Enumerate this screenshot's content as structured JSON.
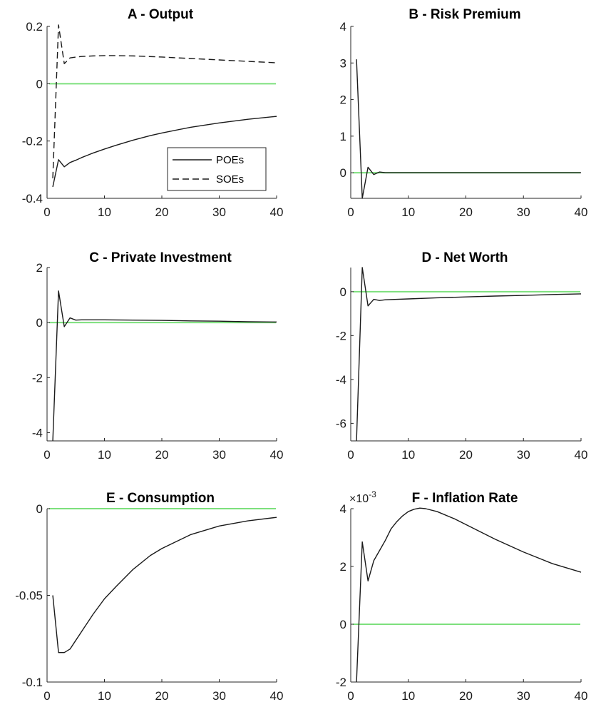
{
  "figure": {
    "background": "#ffffff",
    "zero_line_color": "#7de07d",
    "series_color": "#1a1a1a"
  },
  "chart_data": [
    {
      "type": "line",
      "title": "A - Output",
      "xlim": [
        0,
        40
      ],
      "ylim": [
        -0.4,
        0.2
      ],
      "xticks": [
        0,
        10,
        20,
        30,
        40
      ],
      "yticks": [
        -0.4,
        -0.2,
        0,
        0.2
      ],
      "ytick_labels": [
        "-0.4",
        "-0.2",
        "0",
        "0.2"
      ],
      "zero_line": true,
      "legend": {
        "position": "lower-right",
        "entries": [
          "POEs",
          "SOEs"
        ]
      },
      "series": [
        {
          "name": "POEs",
          "style": "solid",
          "x": [
            1,
            2,
            3,
            4,
            5,
            6,
            7,
            8,
            10,
            12,
            15,
            18,
            20,
            25,
            30,
            35,
            40
          ],
          "y": [
            -0.36,
            -0.265,
            -0.29,
            -0.275,
            -0.267,
            -0.258,
            -0.25,
            -0.242,
            -0.228,
            -0.215,
            -0.197,
            -0.181,
            -0.172,
            -0.152,
            -0.137,
            -0.124,
            -0.114
          ]
        },
        {
          "name": "SOEs",
          "style": "dashed",
          "x": [
            1,
            2,
            3,
            4,
            5,
            6,
            8,
            10,
            12,
            15,
            20,
            25,
            30,
            35,
            40
          ],
          "y": [
            -0.33,
            0.205,
            0.07,
            0.09,
            0.093,
            0.095,
            0.097,
            0.098,
            0.098,
            0.097,
            0.093,
            0.088,
            0.083,
            0.078,
            0.073
          ]
        }
      ]
    },
    {
      "type": "line",
      "title": "B - Risk Premium",
      "xlim": [
        0,
        40
      ],
      "ylim": [
        -0.7,
        4
      ],
      "xticks": [
        0,
        10,
        20,
        30,
        40
      ],
      "yticks": [
        0,
        1,
        2,
        3,
        4
      ],
      "ytick_labels": [
        "0",
        "1",
        "2",
        "3",
        "4"
      ],
      "zero_line": true,
      "series": [
        {
          "style": "solid",
          "x": [
            1,
            2,
            3,
            4,
            5,
            6,
            8,
            10,
            15,
            20,
            30,
            40
          ],
          "y": [
            3.1,
            -0.7,
            0.15,
            -0.05,
            0.02,
            0,
            0,
            0,
            0,
            0,
            0,
            0
          ]
        }
      ]
    },
    {
      "type": "line",
      "title": "C - Private Investment",
      "xlim": [
        0,
        40
      ],
      "ylim": [
        -4.3,
        2
      ],
      "xticks": [
        0,
        10,
        20,
        30,
        40
      ],
      "yticks": [
        -4,
        -2,
        0,
        2
      ],
      "ytick_labels": [
        "-4",
        "-2",
        "0",
        "2"
      ],
      "zero_line": true,
      "series": [
        {
          "style": "solid",
          "x": [
            1,
            2,
            3,
            4,
            5,
            6,
            8,
            10,
            15,
            20,
            25,
            30,
            35,
            40
          ],
          "y": [
            -4.3,
            1.15,
            -0.15,
            0.17,
            0.09,
            0.1,
            0.1,
            0.1,
            0.09,
            0.08,
            0.06,
            0.05,
            0.03,
            0.02
          ]
        }
      ]
    },
    {
      "type": "line",
      "title": "D - Net Worth",
      "xlim": [
        0,
        40
      ],
      "ylim": [
        -6.8,
        1.1
      ],
      "xticks": [
        0,
        10,
        20,
        30,
        40
      ],
      "yticks": [
        -6,
        -4,
        -2,
        0
      ],
      "ytick_labels": [
        "-6",
        "-4",
        "-2",
        "0"
      ],
      "zero_line": true,
      "series": [
        {
          "style": "solid",
          "x": [
            1,
            2,
            3,
            4,
            5,
            6,
            8,
            10,
            15,
            20,
            25,
            30,
            35,
            40
          ],
          "y": [
            -6.8,
            1.1,
            -0.65,
            -0.35,
            -0.4,
            -0.37,
            -0.35,
            -0.33,
            -0.28,
            -0.24,
            -0.2,
            -0.17,
            -0.13,
            -0.1
          ]
        }
      ]
    },
    {
      "type": "line",
      "title": "E - Consumption",
      "xlim": [
        0,
        40
      ],
      "ylim": [
        -0.1,
        0
      ],
      "xticks": [
        0,
        10,
        20,
        30,
        40
      ],
      "yticks": [
        -0.1,
        -0.05,
        0
      ],
      "ytick_labels": [
        "-0.1",
        "-0.05",
        "0"
      ],
      "zero_line": true,
      "series": [
        {
          "style": "solid",
          "x": [
            1,
            2,
            3,
            4,
            5,
            6,
            7,
            8,
            10,
            12,
            15,
            18,
            20,
            25,
            30,
            35,
            40
          ],
          "y": [
            -0.05,
            -0.083,
            -0.083,
            -0.081,
            -0.076,
            -0.071,
            -0.066,
            -0.061,
            -0.052,
            -0.045,
            -0.035,
            -0.027,
            -0.023,
            -0.015,
            -0.01,
            -0.007,
            -0.005
          ]
        }
      ]
    },
    {
      "type": "line",
      "title": "F - Inflation Rate",
      "axis_exponent": "×10",
      "axis_exponent_power": "-3",
      "xlim": [
        0,
        40
      ],
      "ylim": [
        -2,
        4
      ],
      "xticks": [
        0,
        10,
        20,
        30,
        40
      ],
      "yticks": [
        -2,
        0,
        2,
        4
      ],
      "ytick_labels": [
        "-2",
        "0",
        "2",
        "4"
      ],
      "zero_line": true,
      "series": [
        {
          "style": "solid",
          "x": [
            1,
            2,
            3,
            4,
            5,
            6,
            7,
            8,
            9,
            10,
            11,
            12,
            13,
            15,
            18,
            20,
            25,
            30,
            35,
            40
          ],
          "y": [
            -2,
            2.85,
            1.5,
            2.2,
            2.55,
            2.9,
            3.3,
            3.55,
            3.75,
            3.9,
            3.98,
            4.02,
            4.0,
            3.9,
            3.65,
            3.45,
            2.95,
            2.5,
            2.1,
            1.8
          ]
        }
      ]
    }
  ]
}
